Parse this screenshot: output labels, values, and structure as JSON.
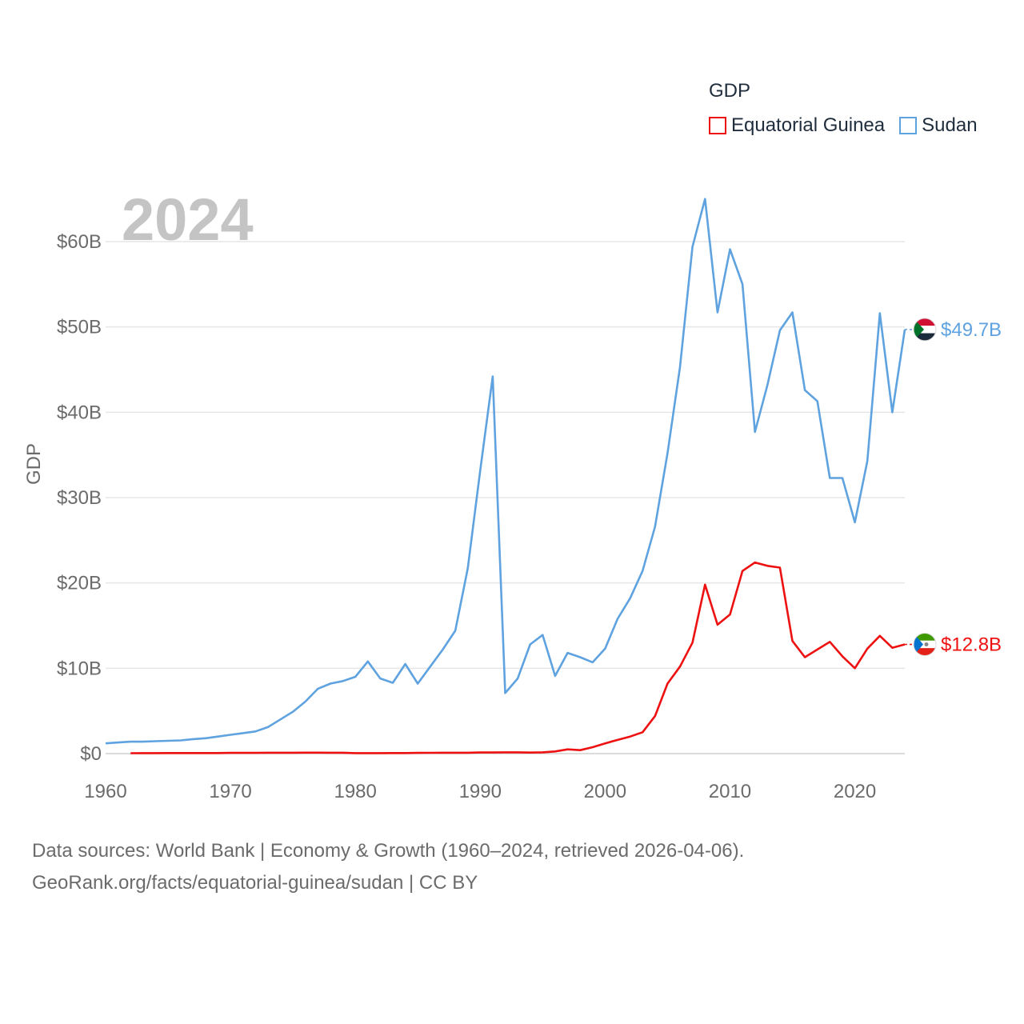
{
  "chart_data": {
    "type": "line",
    "year_label": "2024",
    "ylabel": "GDP",
    "legend_title": "GDP",
    "x_ticks": [
      "1960",
      "1970",
      "1980",
      "1990",
      "2000",
      "2010",
      "2020"
    ],
    "y_ticks": [
      "$0",
      "$10B",
      "$20B",
      "$30B",
      "$40B",
      "$50B",
      "$60B"
    ],
    "xlim": [
      1960,
      2024
    ],
    "ylim": [
      0,
      60
    ],
    "units": "billions USD",
    "series": [
      {
        "name": "Equatorial Guinea",
        "color": "#ee1111",
        "end_label": "$12.8B",
        "flag": "equatorial-guinea-flag-icon",
        "x": [
          1962,
          1963,
          1964,
          1965,
          1966,
          1967,
          1968,
          1969,
          1970,
          1971,
          1972,
          1973,
          1974,
          1975,
          1976,
          1977,
          1978,
          1979,
          1980,
          1981,
          1982,
          1983,
          1984,
          1985,
          1986,
          1987,
          1988,
          1989,
          1990,
          1991,
          1992,
          1993,
          1994,
          1995,
          1996,
          1997,
          1998,
          1999,
          2000,
          2001,
          2002,
          2003,
          2004,
          2005,
          2006,
          2007,
          2008,
          2009,
          2010,
          2011,
          2012,
          2013,
          2014,
          2015,
          2016,
          2017,
          2018,
          2019,
          2020,
          2021,
          2022,
          2023,
          2024
        ],
        "values": [
          0.05,
          0.06,
          0.06,
          0.07,
          0.07,
          0.07,
          0.07,
          0.07,
          0.08,
          0.08,
          0.08,
          0.1,
          0.1,
          0.1,
          0.11,
          0.11,
          0.1,
          0.1,
          0.06,
          0.06,
          0.06,
          0.07,
          0.07,
          0.08,
          0.09,
          0.1,
          0.1,
          0.1,
          0.13,
          0.13,
          0.15,
          0.15,
          0.12,
          0.15,
          0.25,
          0.5,
          0.4,
          0.75,
          1.2,
          1.6,
          2.0,
          2.5,
          4.4,
          8.2,
          10.2,
          13.0,
          19.8,
          15.1,
          16.3,
          21.4,
          22.4,
          22.0,
          21.8,
          13.2,
          11.3,
          12.2,
          13.1,
          11.4,
          10.0,
          12.3,
          13.8,
          12.4,
          12.8
        ]
      },
      {
        "name": "Sudan",
        "color": "#5fa2e0",
        "end_label": "$49.7B",
        "flag": "sudan-flag-icon",
        "x": [
          1960,
          1961,
          1962,
          1963,
          1964,
          1965,
          1966,
          1967,
          1968,
          1969,
          1970,
          1971,
          1972,
          1973,
          1974,
          1975,
          1976,
          1977,
          1978,
          1979,
          1980,
          1981,
          1982,
          1983,
          1984,
          1985,
          1986,
          1987,
          1988,
          1989,
          1990,
          1991,
          1992,
          1993,
          1994,
          1995,
          1996,
          1997,
          1998,
          1999,
          2000,
          2001,
          2002,
          2003,
          2004,
          2005,
          2006,
          2007,
          2008,
          2009,
          2010,
          2011,
          2012,
          2013,
          2014,
          2015,
          2016,
          2017,
          2018,
          2019,
          2020,
          2021,
          2022,
          2023,
          2024
        ],
        "values": [
          1.2,
          1.3,
          1.4,
          1.4,
          1.45,
          1.5,
          1.55,
          1.7,
          1.8,
          2.0,
          2.2,
          2.4,
          2.6,
          3.1,
          4.0,
          4.9,
          6.1,
          7.6,
          8.2,
          8.5,
          9.0,
          10.8,
          8.8,
          8.3,
          10.5,
          8.2,
          10.2,
          12.2,
          14.4,
          21.7,
          33.2,
          44.2,
          7.1,
          8.8,
          12.8,
          13.9,
          9.1,
          11.8,
          11.3,
          10.7,
          12.3,
          15.8,
          18.2,
          21.4,
          26.6,
          35.2,
          45.3,
          59.4,
          65.0,
          51.7,
          59.1,
          55.0,
          37.7,
          43.2,
          49.6,
          51.7,
          42.6,
          41.3,
          32.3,
          32.3,
          27.1,
          34.3,
          51.6,
          40.0,
          49.7
        ]
      }
    ]
  },
  "source_line1": "Data sources: World Bank | Economy & Growth (1960–2024, retrieved 2026-04-06).",
  "source_line2": "GeoRank.org/facts/equatorial-guinea/sudan | CC BY"
}
